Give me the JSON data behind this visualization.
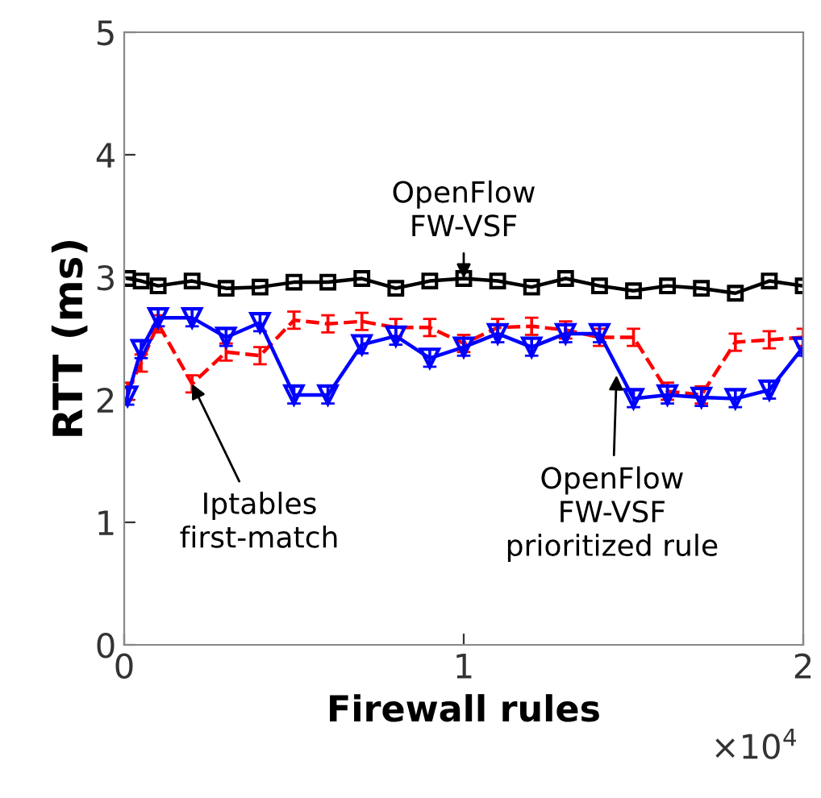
{
  "chart_data": {
    "type": "line",
    "xlabel": "Firewall rules",
    "ylabel": "RTT (ms)",
    "x": [
      0.01,
      0.05,
      0.1,
      0.2,
      0.3,
      0.4,
      0.5,
      0.6,
      0.7,
      0.8,
      0.9,
      1.0,
      1.1,
      1.2,
      1.3,
      1.4,
      1.5,
      1.6,
      1.7,
      1.8,
      1.9,
      2.0
    ],
    "xlim": [
      0,
      2
    ],
    "xticks": [
      0,
      1,
      2
    ],
    "ylim": [
      0,
      5
    ],
    "yticks": [
      0,
      1,
      2,
      3,
      4,
      5
    ],
    "grid": false,
    "legend": false,
    "series": [
      {
        "color": "#000000",
        "marker": "square",
        "line_style": "solid",
        "values": [
          2.99,
          2.97,
          2.93,
          2.97,
          2.91,
          2.92,
          2.96,
          2.96,
          2.99,
          2.91,
          2.97,
          2.99,
          2.97,
          2.92,
          2.99,
          2.93,
          2.89,
          2.93,
          2.91,
          2.87,
          2.97,
          2.93
        ]
      },
      {
        "color": "#ff0000",
        "marker": "none",
        "line_style": "dashed",
        "values": [
          2.07,
          2.3,
          2.62,
          2.13,
          2.39,
          2.36,
          2.65,
          2.62,
          2.64,
          2.59,
          2.59,
          2.46,
          2.59,
          2.6,
          2.57,
          2.51,
          2.51,
          2.07,
          2.04,
          2.47,
          2.49,
          2.51
        ],
        "errors": [
          0.07,
          0.07,
          0.07,
          0.07,
          0.07,
          0.07,
          0.07,
          0.07,
          0.07,
          0.07,
          0.07,
          0.07,
          0.07,
          0.07,
          0.07,
          0.07,
          0.07,
          0.07,
          0.07,
          0.07,
          0.07,
          0.07
        ]
      },
      {
        "color": "#0000ff",
        "marker": "triangle",
        "line_style": "solid",
        "values": [
          2.03,
          2.41,
          2.67,
          2.67,
          2.51,
          2.63,
          2.04,
          2.04,
          2.45,
          2.52,
          2.34,
          2.43,
          2.54,
          2.43,
          2.54,
          2.54,
          2.01,
          2.04,
          2.02,
          2.01,
          2.08,
          2.43
        ],
        "errors": [
          0.07,
          0.07,
          0.07,
          0.07,
          0.07,
          0.07,
          0.07,
          0.07,
          0.07,
          0.07,
          0.07,
          0.07,
          0.07,
          0.07,
          0.07,
          0.07,
          0.07,
          0.07,
          0.07,
          0.07,
          0.07,
          0.07
        ]
      }
    ],
    "annotations": [
      {
        "text": "OpenFlow\nFW-VSF",
        "x": 1.0,
        "y": 2.99
      },
      {
        "text": "Iptables\nfirst-match",
        "x": 0.2,
        "y": 2.13
      },
      {
        "text": "OpenFlow\nFW-VSF\nprioritized rule",
        "x": 1.45,
        "y": 2.2
      },
      "×10$^{4}$"
    ]
  }
}
